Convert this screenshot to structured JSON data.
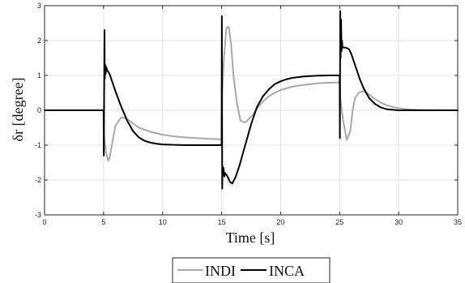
{
  "chart_data": {
    "type": "line",
    "title": "",
    "xlabel": "Time [s]",
    "ylabel": "δr [degree]",
    "xlim": [
      0,
      35
    ],
    "ylim": [
      -3,
      3
    ],
    "xticks": [
      0,
      5,
      10,
      15,
      20,
      25,
      30,
      35
    ],
    "yticks": [
      -3,
      -2,
      -1,
      0,
      1,
      2,
      3
    ],
    "grid": true,
    "legend": {
      "placement": "bottom-center",
      "entries": [
        "INDI",
        "INCA"
      ]
    },
    "series": [
      {
        "name": "INDI",
        "color": "#a9a9a9",
        "x": [
          0,
          5.0,
          5.05,
          5.2,
          5.4,
          5.5,
          5.7,
          6.0,
          6.5,
          7.0,
          7.5,
          8.0,
          9.0,
          10.0,
          11.0,
          12.0,
          13.0,
          14.0,
          15.0,
          15.05,
          15.2,
          15.4,
          15.6,
          15.8,
          16.0,
          16.3,
          16.6,
          17.0,
          17.3,
          17.6,
          18.0,
          18.5,
          19.0,
          19.5,
          20.0,
          21.0,
          22.0,
          23.0,
          24.0,
          25.0,
          25.05,
          25.3,
          25.6,
          25.9,
          26.1,
          26.3,
          26.6,
          27.0,
          27.5,
          28.0,
          28.5,
          29.0,
          30.0,
          31.0,
          32.0,
          33.0,
          34.0,
          35.0
        ],
        "y": [
          0,
          0,
          -0.75,
          -1.2,
          -1.45,
          -1.38,
          -1.0,
          -0.45,
          -0.2,
          -0.25,
          -0.38,
          -0.5,
          -0.62,
          -0.7,
          -0.75,
          -0.78,
          -0.8,
          -0.82,
          -0.83,
          0.5,
          1.5,
          2.35,
          2.4,
          1.9,
          1.0,
          0.2,
          -0.3,
          -0.35,
          -0.25,
          -0.15,
          0.05,
          0.25,
          0.4,
          0.5,
          0.58,
          0.68,
          0.73,
          0.77,
          0.79,
          0.8,
          0.35,
          -0.3,
          -0.85,
          -0.6,
          0.0,
          0.35,
          0.5,
          0.55,
          0.45,
          0.32,
          0.22,
          0.14,
          0.06,
          0.02,
          0.01,
          0.0,
          0.0,
          0.0
        ]
      },
      {
        "name": "INCA",
        "color": "#000000",
        "x": [
          0,
          5.0,
          5.02,
          5.05,
          5.08,
          5.1,
          5.14,
          5.18,
          5.22,
          5.3,
          5.5,
          6.0,
          6.5,
          7.0,
          7.5,
          8.0,
          8.5,
          9.0,
          9.5,
          10.0,
          11.0,
          12.0,
          13.0,
          14.0,
          15.0,
          15.02,
          15.05,
          15.08,
          15.12,
          15.16,
          15.22,
          15.3,
          15.5,
          15.7,
          15.9,
          16.2,
          16.5,
          17.0,
          17.5,
          18.0,
          18.5,
          19.0,
          19.5,
          20.0,
          20.5,
          21.0,
          22.0,
          23.0,
          24.0,
          25.0,
          25.02,
          25.05,
          25.08,
          25.12,
          25.16,
          25.2,
          25.24,
          25.3,
          25.5,
          25.8,
          26.0,
          26.3,
          26.7,
          27.0,
          27.5,
          28.0,
          28.5,
          29.0,
          30.0,
          31.0,
          32.0,
          33.0,
          34.0,
          35.0
        ],
        "y": [
          0,
          0,
          -1.3,
          0.6,
          2.3,
          0.9,
          1.3,
          1.05,
          1.25,
          1.15,
          1.05,
          0.55,
          0.1,
          -0.3,
          -0.6,
          -0.78,
          -0.88,
          -0.93,
          -0.96,
          -0.98,
          -0.99,
          -1.0,
          -1.0,
          -1.0,
          -1.0,
          2.7,
          -2.25,
          -1.6,
          -1.85,
          -1.65,
          -1.9,
          -1.8,
          -1.9,
          -2.05,
          -2.1,
          -1.9,
          -1.6,
          -1.0,
          -0.4,
          0.1,
          0.4,
          0.6,
          0.75,
          0.83,
          0.89,
          0.93,
          0.97,
          0.99,
          1.0,
          1.0,
          -0.8,
          2.85,
          1.5,
          2.6,
          1.7,
          2.0,
          1.8,
          1.8,
          1.8,
          1.75,
          1.6,
          1.3,
          0.9,
          0.65,
          0.35,
          0.18,
          0.08,
          0.03,
          0.0,
          0.0,
          0.0,
          0.0,
          0.0,
          0.0
        ]
      }
    ]
  }
}
